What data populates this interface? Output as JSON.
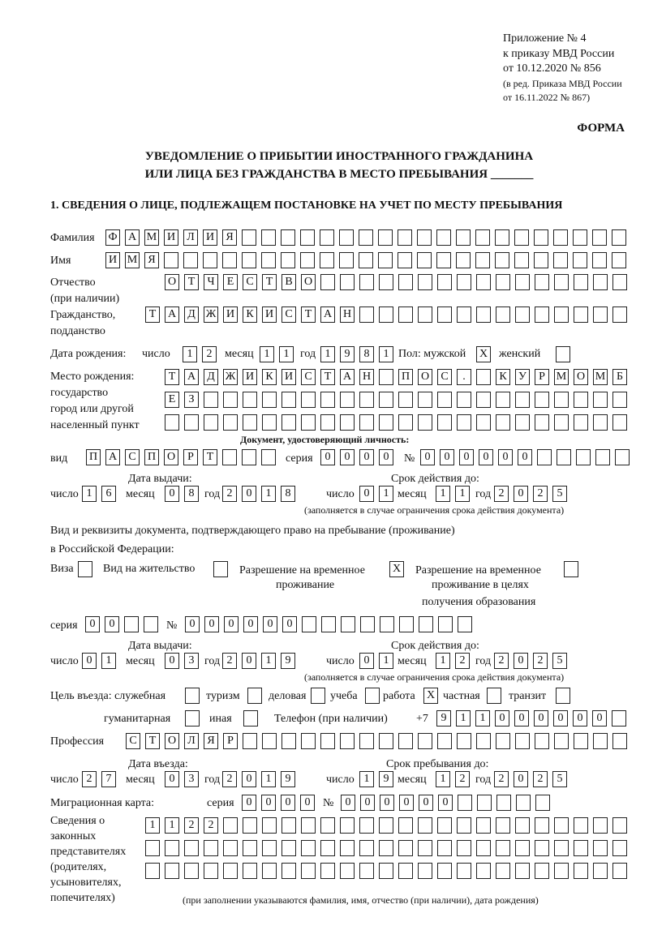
{
  "header": {
    "line1": "Приложение № 4",
    "line2": "к приказу МВД России",
    "line3": "от 10.12.2020 № 856",
    "line4": "(в ред. Приказа МВД России",
    "line5": "от 16.11.2022 № 867)",
    "forma": "ФОРМА"
  },
  "title": {
    "line1": "УВЕДОМЛЕНИЕ О ПРИБЫТИИ ИНОСТРАННОГО ГРАЖДАНИНА",
    "line2": "ИЛИ ЛИЦА БЕЗ ГРАЖДАНСТВА В МЕСТО ПРЕБЫВАНИЯ _______"
  },
  "section1": "1. СВЕДЕНИЯ О ЛИЦЕ, ПОДЛЕЖАЩЕМ ПОСТАНОВКЕ НА УЧЕТ ПО МЕСТУ ПРЕБЫВАНИЯ",
  "labels": {
    "surname": "Фамилия",
    "name": "Имя",
    "patronymic": "Отчество",
    "patronymic2": "(при наличии)",
    "citizenship": "Гражданство,",
    "citizenship2": "подданство",
    "dob": "Дата рождения:",
    "day": "число",
    "month": "месяц",
    "year": "год",
    "sex": "Пол: мужской",
    "female": "женский",
    "birthplace1": "Место рождения:",
    "birthplace2": "государство",
    "birthplace3": "город или другой",
    "birthplace4": "населенный пункт",
    "iddoc": "Документ, удостоверяющий личность:",
    "kind": "вид",
    "series": "серия",
    "number": "№",
    "issued": "Дата выдачи:",
    "valid": "Срок действия до:",
    "validnote": "(заполняется в случае ограничения срока действия документа)",
    "permit1": "Вид и реквизиты документа, подтверждающего право на пребывание (проживание)",
    "permit2": "в Российской Федерации:",
    "visa": "Виза",
    "residence": "Вид на жительство",
    "trp1": "Разрешение на временное",
    "trp2": "проживание",
    "trpe1": "Разрешение на временное",
    "trpe2": "проживание в целях",
    "trpe3": "получения образования",
    "purpose": "Цель въезда: служебная",
    "tourism": "туризм",
    "business": "деловая",
    "study": "учеба",
    "work": "работа",
    "private": "частная",
    "transit": "транзит",
    "humanitarian": "гуманитарная",
    "other": "иная",
    "phone": "Телефон (при наличии)",
    "phoneprefix": "+7",
    "profession": "Профессия",
    "entry": "Дата въезда:",
    "stay": "Срок пребывания до:",
    "migcard": "Миграционная карта:",
    "rep1": "Сведения о",
    "rep2": "законных",
    "rep3": "представителях",
    "rep4": "(родителях,",
    "rep5": "усыновителях,",
    "rep6": "попечителях)",
    "repnote": "(при заполнении указываются фамилия, имя, отчество (при наличии), дата рождения)"
  },
  "fields": {
    "surname": [
      "Ф",
      "А",
      "М",
      "И",
      "Л",
      "И",
      "Я"
    ],
    "name": [
      "И",
      "М",
      "Я"
    ],
    "patronymic": [
      "О",
      "Т",
      "Ч",
      "Е",
      "С",
      "Т",
      "В",
      "О"
    ],
    "citizenship": [
      "Т",
      "А",
      "Д",
      "Ж",
      "И",
      "К",
      "И",
      "С",
      "Т",
      "А",
      "Н"
    ],
    "dob_day": [
      "1",
      "2"
    ],
    "dob_month": [
      "1",
      "1"
    ],
    "dob_year": [
      "1",
      "9",
      "8",
      "1"
    ],
    "sex_male": [
      "X"
    ],
    "sex_female": [
      ""
    ],
    "birthplace_1": [
      "Т",
      "А",
      "Д",
      "Ж",
      "И",
      "К",
      "И",
      "С",
      "Т",
      "А",
      "Н",
      "",
      "П",
      "О",
      "С",
      ".",
      "",
      "К",
      "У",
      "Р",
      "М",
      "О",
      "М",
      "Б"
    ],
    "birthplace_2": [
      "Е",
      "З"
    ],
    "birthplace_3": [],
    "id_kind": [
      "П",
      "А",
      "С",
      "П",
      "О",
      "Р",
      "Т"
    ],
    "id_series": [
      "0",
      "0",
      "0",
      "0"
    ],
    "id_number": [
      "0",
      "0",
      "0",
      "0",
      "0",
      "0"
    ],
    "id_issue_day": [
      "1",
      "6"
    ],
    "id_issue_month": [
      "0",
      "8"
    ],
    "id_issue_year": [
      "2",
      "0",
      "1",
      "8"
    ],
    "id_valid_day": [
      "0",
      "1"
    ],
    "id_valid_month": [
      "1",
      "1"
    ],
    "id_valid_year": [
      "2",
      "0",
      "2",
      "5"
    ],
    "visa": [
      ""
    ],
    "residence": [
      ""
    ],
    "trp": [
      "X"
    ],
    "trpe": [
      ""
    ],
    "permit_series": [
      "0",
      "0"
    ],
    "permit_number": [
      "0",
      "0",
      "0",
      "0",
      "0",
      "0"
    ],
    "permit_issue_day": [
      "0",
      "1"
    ],
    "permit_issue_month": [
      "0",
      "3"
    ],
    "permit_issue_year": [
      "2",
      "0",
      "1",
      "9"
    ],
    "permit_valid_day": [
      "0",
      "1"
    ],
    "permit_valid_month": [
      "1",
      "2"
    ],
    "permit_valid_year": [
      "2",
      "0",
      "2",
      "5"
    ],
    "p_service": [
      ""
    ],
    "p_tourism": [
      ""
    ],
    "p_business": [
      ""
    ],
    "p_study": [
      ""
    ],
    "p_work": [
      "X"
    ],
    "p_private": [
      ""
    ],
    "p_transit": [
      ""
    ],
    "p_humanitarian": [
      ""
    ],
    "p_other": [
      ""
    ],
    "phone": [
      "9",
      "1",
      "1",
      "0",
      "0",
      "0",
      "0",
      "0",
      "0"
    ],
    "profession": [
      "С",
      "Т",
      "О",
      "Л",
      "Я",
      "Р"
    ],
    "entry_day": [
      "2",
      "7"
    ],
    "entry_month": [
      "0",
      "3"
    ],
    "entry_year": [
      "2",
      "0",
      "1",
      "9"
    ],
    "stay_day": [
      "1",
      "9"
    ],
    "stay_month": [
      "1",
      "2"
    ],
    "stay_year": [
      "2",
      "0",
      "2",
      "5"
    ],
    "mig_series": [
      "0",
      "0",
      "0",
      "0"
    ],
    "mig_number": [
      "0",
      "0",
      "0",
      "0",
      "0",
      "0"
    ],
    "rep_1": [
      "1",
      "1",
      "2",
      "2"
    ],
    "rep_2": [],
    "rep_3": []
  }
}
